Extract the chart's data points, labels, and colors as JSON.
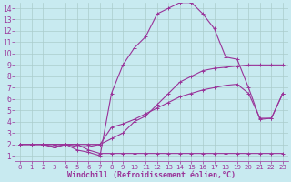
{
  "background_color": "#c8eaf0",
  "plot_background": "#c8eaf0",
  "line_color": "#993399",
  "marker_color": "#993399",
  "grid_color": "#aacccc",
  "xlabel_color": "#993399",
  "tick_color": "#993399",
  "xlabel": "Windchill (Refroidissement éolien,°C)",
  "xlim": [
    -0.5,
    23.5
  ],
  "ylim": [
    0.5,
    14.5
  ],
  "xticks": [
    0,
    1,
    2,
    3,
    4,
    5,
    6,
    7,
    8,
    9,
    10,
    11,
    12,
    13,
    14,
    15,
    16,
    17,
    18,
    19,
    20,
    21,
    22,
    23
  ],
  "yticks": [
    1,
    2,
    3,
    4,
    5,
    6,
    7,
    8,
    9,
    10,
    11,
    12,
    13,
    14
  ],
  "curve1_x": [
    0,
    1,
    2,
    3,
    4,
    5,
    6,
    7,
    8,
    9,
    10,
    11,
    12,
    13,
    14,
    15,
    16,
    17,
    18,
    19,
    20,
    21,
    22,
    23
  ],
  "curve1_y": [
    2,
    2,
    2,
    2,
    2,
    2,
    1.5,
    1.2,
    1.2,
    1.2,
    1.2,
    1.2,
    1.2,
    1.2,
    1.2,
    1.2,
    1.2,
    1.2,
    1.2,
    1.2,
    1.2,
    1.2,
    1.2,
    1.2
  ],
  "curve2_x": [
    0,
    1,
    2,
    3,
    4,
    5,
    6,
    7,
    8,
    9,
    10,
    11,
    12,
    13,
    14,
    15,
    16,
    17,
    18,
    19,
    20,
    21,
    22,
    23
  ],
  "curve2_y": [
    2,
    2,
    2,
    2,
    2,
    2,
    2,
    2,
    2.5,
    3,
    4,
    4.5,
    5.5,
    6.5,
    7.5,
    8,
    8.5,
    8.7,
    8.8,
    8.9,
    9,
    9,
    9,
    9
  ],
  "curve3_x": [
    0,
    1,
    2,
    3,
    4,
    5,
    6,
    7,
    8,
    9,
    10,
    11,
    12,
    13,
    14,
    15,
    16,
    17,
    18,
    19,
    20,
    21,
    22,
    23
  ],
  "curve3_y": [
    2,
    2,
    2,
    1.8,
    2,
    1.8,
    1.8,
    2,
    3.5,
    3.8,
    4.2,
    4.7,
    5.2,
    5.7,
    6.2,
    6.5,
    6.8,
    7.0,
    7.2,
    7.3,
    6.5,
    4.3,
    4.3,
    6.5
  ],
  "curve4_x": [
    0,
    1,
    2,
    3,
    4,
    5,
    6,
    7,
    8,
    9,
    10,
    11,
    12,
    13,
    14,
    15,
    16,
    17,
    18,
    19,
    20,
    21,
    22,
    23
  ],
  "curve4_y": [
    2,
    2,
    2,
    1.7,
    2,
    1.5,
    1.3,
    1.0,
    6.5,
    9.0,
    10.5,
    11.5,
    13.5,
    14.0,
    14.5,
    14.5,
    13.5,
    12.2,
    9.7,
    9.5,
    7.0,
    4.2,
    4.3,
    6.5
  ],
  "font_size": 6,
  "marker_size": 2.5,
  "line_width": 0.8
}
